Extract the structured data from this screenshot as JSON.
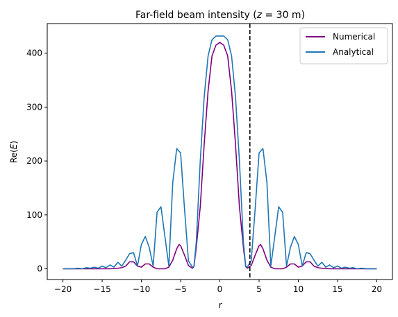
{
  "chart_data": {
    "type": "line",
    "title": "Far-field beam intensity (z = 30 m)",
    "title_parts": [
      "Far-field beam intensity (",
      "z",
      " = 30 m)"
    ],
    "xlabel": "r",
    "ylabel": "Re(E)",
    "ylabel_parts": [
      "Re(",
      "E",
      ")"
    ],
    "xlim": [
      -22,
      22
    ],
    "ylim": [
      -20,
      455
    ],
    "xticks": [
      -20,
      -15,
      -10,
      -5,
      0,
      5,
      10,
      15,
      20
    ],
    "xtick_labels": [
      "−20",
      "−15",
      "−10",
      "−5",
      "0",
      "5",
      "10",
      "15",
      "20"
    ],
    "yticks": [
      0,
      100,
      200,
      300,
      400
    ],
    "ytick_labels": [
      "0",
      "100",
      "200",
      "300",
      "400"
    ],
    "grid": false,
    "legend_position": "top-right",
    "vline": {
      "x": 3.83,
      "style": "dashed",
      "color": "#000000"
    },
    "series": [
      {
        "name": "Numerical",
        "color": "#800080",
        "x": [
          -20,
          -19,
          -18,
          -17,
          -16,
          -15,
          -14,
          -13,
          -12.5,
          -12,
          -11.5,
          -11,
          -10.5,
          -10,
          -9.5,
          -9,
          -8.5,
          -8,
          -7.5,
          -7,
          -6.5,
          -6,
          -5.5,
          -5.2,
          -5,
          -4.5,
          -4,
          -3.5,
          -3.3,
          -3,
          -2.5,
          -2,
          -1.5,
          -1,
          -0.5,
          0,
          0.5,
          1,
          1.5,
          2,
          2.5,
          3,
          3.3,
          3.5,
          4,
          4.5,
          5,
          5.2,
          5.5,
          6,
          6.5,
          7,
          7.5,
          8,
          8.5,
          9,
          9.5,
          10,
          10.5,
          11,
          11.5,
          12,
          12.5,
          13,
          14,
          15,
          16,
          17,
          18,
          19,
          20
        ],
        "y": [
          0,
          0,
          0,
          0,
          0,
          0,
          0,
          1,
          2,
          5,
          13,
          13,
          5,
          3,
          9,
          9,
          3,
          0,
          0,
          0,
          3,
          16,
          37,
          45,
          43,
          25,
          6,
          1,
          4,
          40,
          115,
          230,
          330,
          395,
          415,
          420,
          415,
          395,
          330,
          230,
          115,
          40,
          4,
          1,
          6,
          25,
          43,
          45,
          37,
          16,
          3,
          0,
          0,
          0,
          3,
          9,
          9,
          3,
          5,
          13,
          13,
          5,
          2,
          1,
          0,
          0,
          0,
          0,
          0,
          0,
          0
        ]
      },
      {
        "name": "Analytical",
        "color": "#1f77b4",
        "x": [
          -20,
          -19,
          -18,
          -17.5,
          -17,
          -16.5,
          -16,
          -15.5,
          -15,
          -14.5,
          -14,
          -13.5,
          -13,
          -12.5,
          -12,
          -11.5,
          -11,
          -10.5,
          -10,
          -9.5,
          -9,
          -8.5,
          -8,
          -7.5,
          -7,
          -6.5,
          -6,
          -5.5,
          -5,
          -4.5,
          -4,
          -3.5,
          -3.3,
          -3,
          -2.5,
          -2,
          -1.5,
          -1,
          -0.5,
          0,
          0.5,
          1,
          1.5,
          2,
          2.5,
          3,
          3.3,
          3.5,
          4,
          4.5,
          5,
          5.5,
          6,
          6.5,
          7,
          7.5,
          8,
          8.5,
          9,
          9.5,
          10,
          10.5,
          11,
          11.5,
          12,
          12.5,
          13,
          13.5,
          14,
          14.5,
          15,
          15.5,
          16,
          16.5,
          17,
          17.5,
          18,
          19,
          20
        ],
        "y": [
          0,
          0,
          1,
          0,
          2,
          1,
          3,
          1,
          5,
          2,
          7,
          3,
          12,
          5,
          16,
          28,
          30,
          5,
          45,
          60,
          40,
          5,
          105,
          115,
          60,
          5,
          160,
          223,
          215,
          110,
          15,
          3,
          4,
          50,
          200,
          318,
          395,
          425,
          432,
          432,
          432,
          425,
          395,
          318,
          200,
          50,
          4,
          3,
          15,
          110,
          215,
          223,
          160,
          5,
          60,
          115,
          105,
          5,
          40,
          60,
          45,
          5,
          30,
          28,
          16,
          5,
          12,
          3,
          7,
          2,
          5,
          1,
          3,
          1,
          2,
          0,
          1,
          0,
          0
        ]
      }
    ]
  }
}
